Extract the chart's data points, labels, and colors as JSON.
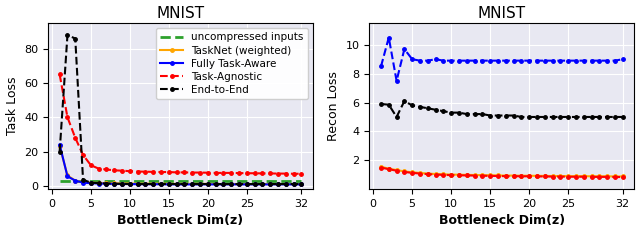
{
  "x_ticks": [
    0,
    5,
    10,
    15,
    20,
    25,
    32
  ],
  "title": "MNIST",
  "left": {
    "title": "MNIST",
    "ylabel": "Task Loss",
    "xlabel": "Bottleneck Dim(z)",
    "ylim": [
      -2,
      95
    ],
    "yticks": [
      0,
      20,
      40,
      60,
      80
    ],
    "series": {
      "uncompressed": {
        "label": "uncompressed inputs",
        "color": "#2ca02c",
        "y_x": [
          1,
          2,
          3,
          4,
          5,
          6,
          7,
          8,
          9,
          10,
          11,
          12,
          13,
          14,
          15,
          16,
          17,
          18,
          19,
          20,
          21,
          22,
          23,
          24,
          25,
          26,
          27,
          28,
          29,
          30,
          31,
          32
        ],
        "y": [
          3.0,
          3.0,
          3.0,
          3.0,
          3.0,
          3.0,
          3.0,
          3.0,
          3.0,
          3.0,
          3.0,
          3.0,
          3.0,
          3.0,
          3.0,
          3.0,
          3.0,
          3.0,
          3.0,
          3.0,
          3.0,
          3.0,
          3.0,
          3.0,
          3.0,
          3.0,
          3.0,
          3.0,
          3.0,
          3.0,
          3.0,
          3.0
        ],
        "linestyle": "--",
        "marker": null,
        "linewidth": 2.0
      },
      "tasknet": {
        "label": "TaskNet (weighted)",
        "color": "orange",
        "y_x": [
          1,
          2,
          3,
          4,
          5,
          6,
          7,
          8,
          9,
          10,
          11,
          12,
          13,
          14,
          15,
          16,
          17,
          18,
          19,
          20,
          21,
          22,
          23,
          24,
          25,
          26,
          27,
          28,
          29,
          30,
          31,
          32
        ],
        "y": [
          23.0,
          6.0,
          3.0,
          2.0,
          1.8,
          1.6,
          1.5,
          1.4,
          1.3,
          1.3,
          1.2,
          1.2,
          1.2,
          1.2,
          1.1,
          1.1,
          1.1,
          1.1,
          1.1,
          1.1,
          1.0,
          1.0,
          1.0,
          1.0,
          1.0,
          1.0,
          1.0,
          1.0,
          1.0,
          1.0,
          1.0,
          1.0
        ],
        "linestyle": "-",
        "marker": "o",
        "linewidth": 1.5
      },
      "task_aware": {
        "label": "Fully Task-Aware",
        "color": "blue",
        "y_x": [
          1,
          2,
          3,
          4,
          5,
          6,
          7,
          8,
          9,
          10,
          11,
          12,
          13,
          14,
          15,
          16,
          17,
          18,
          19,
          20,
          21,
          22,
          23,
          24,
          25,
          26,
          27,
          28,
          29,
          30,
          31,
          32
        ],
        "y": [
          24.0,
          5.5,
          3.0,
          1.8,
          1.5,
          1.3,
          1.2,
          1.1,
          1.0,
          1.0,
          0.9,
          0.9,
          0.9,
          0.9,
          0.8,
          0.8,
          0.8,
          0.8,
          0.8,
          0.8,
          0.8,
          0.8,
          0.8,
          0.8,
          0.8,
          0.8,
          0.8,
          0.8,
          0.8,
          0.8,
          0.8,
          0.8
        ],
        "linestyle": "-",
        "marker": "o",
        "linewidth": 1.5
      },
      "task_agnostic": {
        "label": "Task-Agnostic",
        "color": "red",
        "y_x": [
          1,
          2,
          3,
          4,
          5,
          6,
          7,
          8,
          9,
          10,
          11,
          12,
          13,
          14,
          15,
          16,
          17,
          18,
          19,
          20,
          21,
          22,
          23,
          24,
          25,
          26,
          27,
          28,
          29,
          30,
          31,
          32
        ],
        "y": [
          65.0,
          40.0,
          28.0,
          18.0,
          12.0,
          10.0,
          9.5,
          9.0,
          8.8,
          8.5,
          8.3,
          8.2,
          8.1,
          8.0,
          8.0,
          7.8,
          7.8,
          7.7,
          7.7,
          7.6,
          7.5,
          7.5,
          7.5,
          7.4,
          7.3,
          7.3,
          7.2,
          7.2,
          7.1,
          7.1,
          7.0,
          7.0
        ],
        "linestyle": "--",
        "marker": "o",
        "linewidth": 1.5
      },
      "end_to_end": {
        "label": "End-to-End",
        "color": "black",
        "y_x": [
          1,
          2,
          3,
          4,
          5,
          6,
          7,
          8,
          9,
          10,
          11,
          12,
          13,
          14,
          15,
          16,
          17,
          18,
          19,
          20,
          21,
          22,
          23,
          24,
          25,
          26,
          27,
          28,
          29,
          30,
          31,
          32
        ],
        "y": [
          20.0,
          88.0,
          86.0,
          3.5,
          1.8,
          1.5,
          1.3,
          1.2,
          1.1,
          1.0,
          1.0,
          1.0,
          1.0,
          1.0,
          1.0,
          1.0,
          1.0,
          1.0,
          1.0,
          1.0,
          1.0,
          1.0,
          1.0,
          1.0,
          1.0,
          1.0,
          1.0,
          1.0,
          1.0,
          1.0,
          1.0,
          1.0
        ],
        "linestyle": "--",
        "marker": "o",
        "linewidth": 1.5
      }
    }
  },
  "right": {
    "title": "MNIST",
    "ylabel": "Recon Loss",
    "xlabel": "Bottleneck Dim(z)",
    "ylim": [
      0,
      11.5
    ],
    "yticks": [
      2,
      4,
      6,
      8,
      10
    ],
    "series": {
      "tasknet": {
        "label": "TaskNet (weighted)",
        "color": "orange",
        "y_x": [
          1,
          2,
          3,
          4,
          5,
          6,
          7,
          8,
          9,
          10,
          11,
          12,
          13,
          14,
          15,
          16,
          17,
          18,
          19,
          20,
          21,
          22,
          23,
          24,
          25,
          26,
          27,
          28,
          29,
          30,
          31,
          32
        ],
        "y": [
          1.55,
          1.42,
          1.32,
          1.23,
          1.17,
          1.12,
          1.08,
          1.05,
          1.03,
          1.01,
          1.0,
          0.99,
          0.98,
          0.97,
          0.96,
          0.95,
          0.94,
          0.94,
          0.93,
          0.93,
          0.92,
          0.92,
          0.91,
          0.91,
          0.9,
          0.9,
          0.9,
          0.89,
          0.89,
          0.89,
          0.88,
          0.88
        ],
        "linestyle": "-",
        "marker": "o",
        "linewidth": 1.5
      },
      "task_aware": {
        "label": "Fully Task-Aware",
        "color": "blue",
        "y_x": [
          1,
          2,
          3,
          4,
          5,
          6,
          7,
          8,
          9,
          10,
          11,
          12,
          13,
          14,
          15,
          16,
          17,
          18,
          19,
          20,
          21,
          22,
          23,
          24,
          25,
          26,
          27,
          28,
          29,
          30,
          31,
          32
        ],
        "y": [
          8.5,
          10.5,
          7.5,
          9.7,
          9.0,
          8.9,
          8.9,
          9.0,
          8.9,
          8.9,
          8.9,
          8.9,
          8.9,
          8.9,
          8.9,
          8.9,
          8.9,
          8.9,
          8.9,
          8.9,
          8.9,
          8.9,
          8.9,
          8.9,
          8.9,
          8.9,
          8.9,
          8.9,
          8.9,
          8.9,
          8.9,
          9.0
        ],
        "linestyle": "--",
        "marker": "o",
        "linewidth": 1.5
      },
      "task_agnostic": {
        "label": "Task-Agnostic",
        "color": "red",
        "y_x": [
          1,
          2,
          3,
          4,
          5,
          6,
          7,
          8,
          9,
          10,
          11,
          12,
          13,
          14,
          15,
          16,
          17,
          18,
          19,
          20,
          21,
          22,
          23,
          24,
          25,
          26,
          27,
          28,
          29,
          30,
          31,
          32
        ],
        "y": [
          1.5,
          1.38,
          1.28,
          1.19,
          1.13,
          1.08,
          1.04,
          1.01,
          0.99,
          0.97,
          0.96,
          0.95,
          0.94,
          0.93,
          0.92,
          0.91,
          0.9,
          0.9,
          0.89,
          0.89,
          0.88,
          0.88,
          0.87,
          0.87,
          0.86,
          0.86,
          0.86,
          0.85,
          0.85,
          0.85,
          0.84,
          0.84
        ],
        "linestyle": "--",
        "marker": "o",
        "linewidth": 1.5
      },
      "end_to_end": {
        "label": "End-to-End",
        "color": "black",
        "y_x": [
          1,
          2,
          3,
          4,
          5,
          6,
          7,
          8,
          9,
          10,
          11,
          12,
          13,
          14,
          15,
          16,
          17,
          18,
          19,
          20,
          21,
          22,
          23,
          24,
          25,
          26,
          27,
          28,
          29,
          30,
          31,
          32
        ],
        "y": [
          5.9,
          5.85,
          5.0,
          6.1,
          5.8,
          5.7,
          5.6,
          5.5,
          5.4,
          5.3,
          5.3,
          5.2,
          5.2,
          5.2,
          5.1,
          5.1,
          5.1,
          5.1,
          5.0,
          5.0,
          5.0,
          5.0,
          5.0,
          5.0,
          5.0,
          5.0,
          5.0,
          5.0,
          5.0,
          5.0,
          5.0,
          5.0
        ],
        "linestyle": "--",
        "marker": "o",
        "linewidth": 1.5
      }
    }
  },
  "bg_color": "#e8e8f2",
  "legend_fontsize": 7.5,
  "axis_label_fontsize": 9,
  "tick_fontsize": 8,
  "title_fontsize": 11
}
